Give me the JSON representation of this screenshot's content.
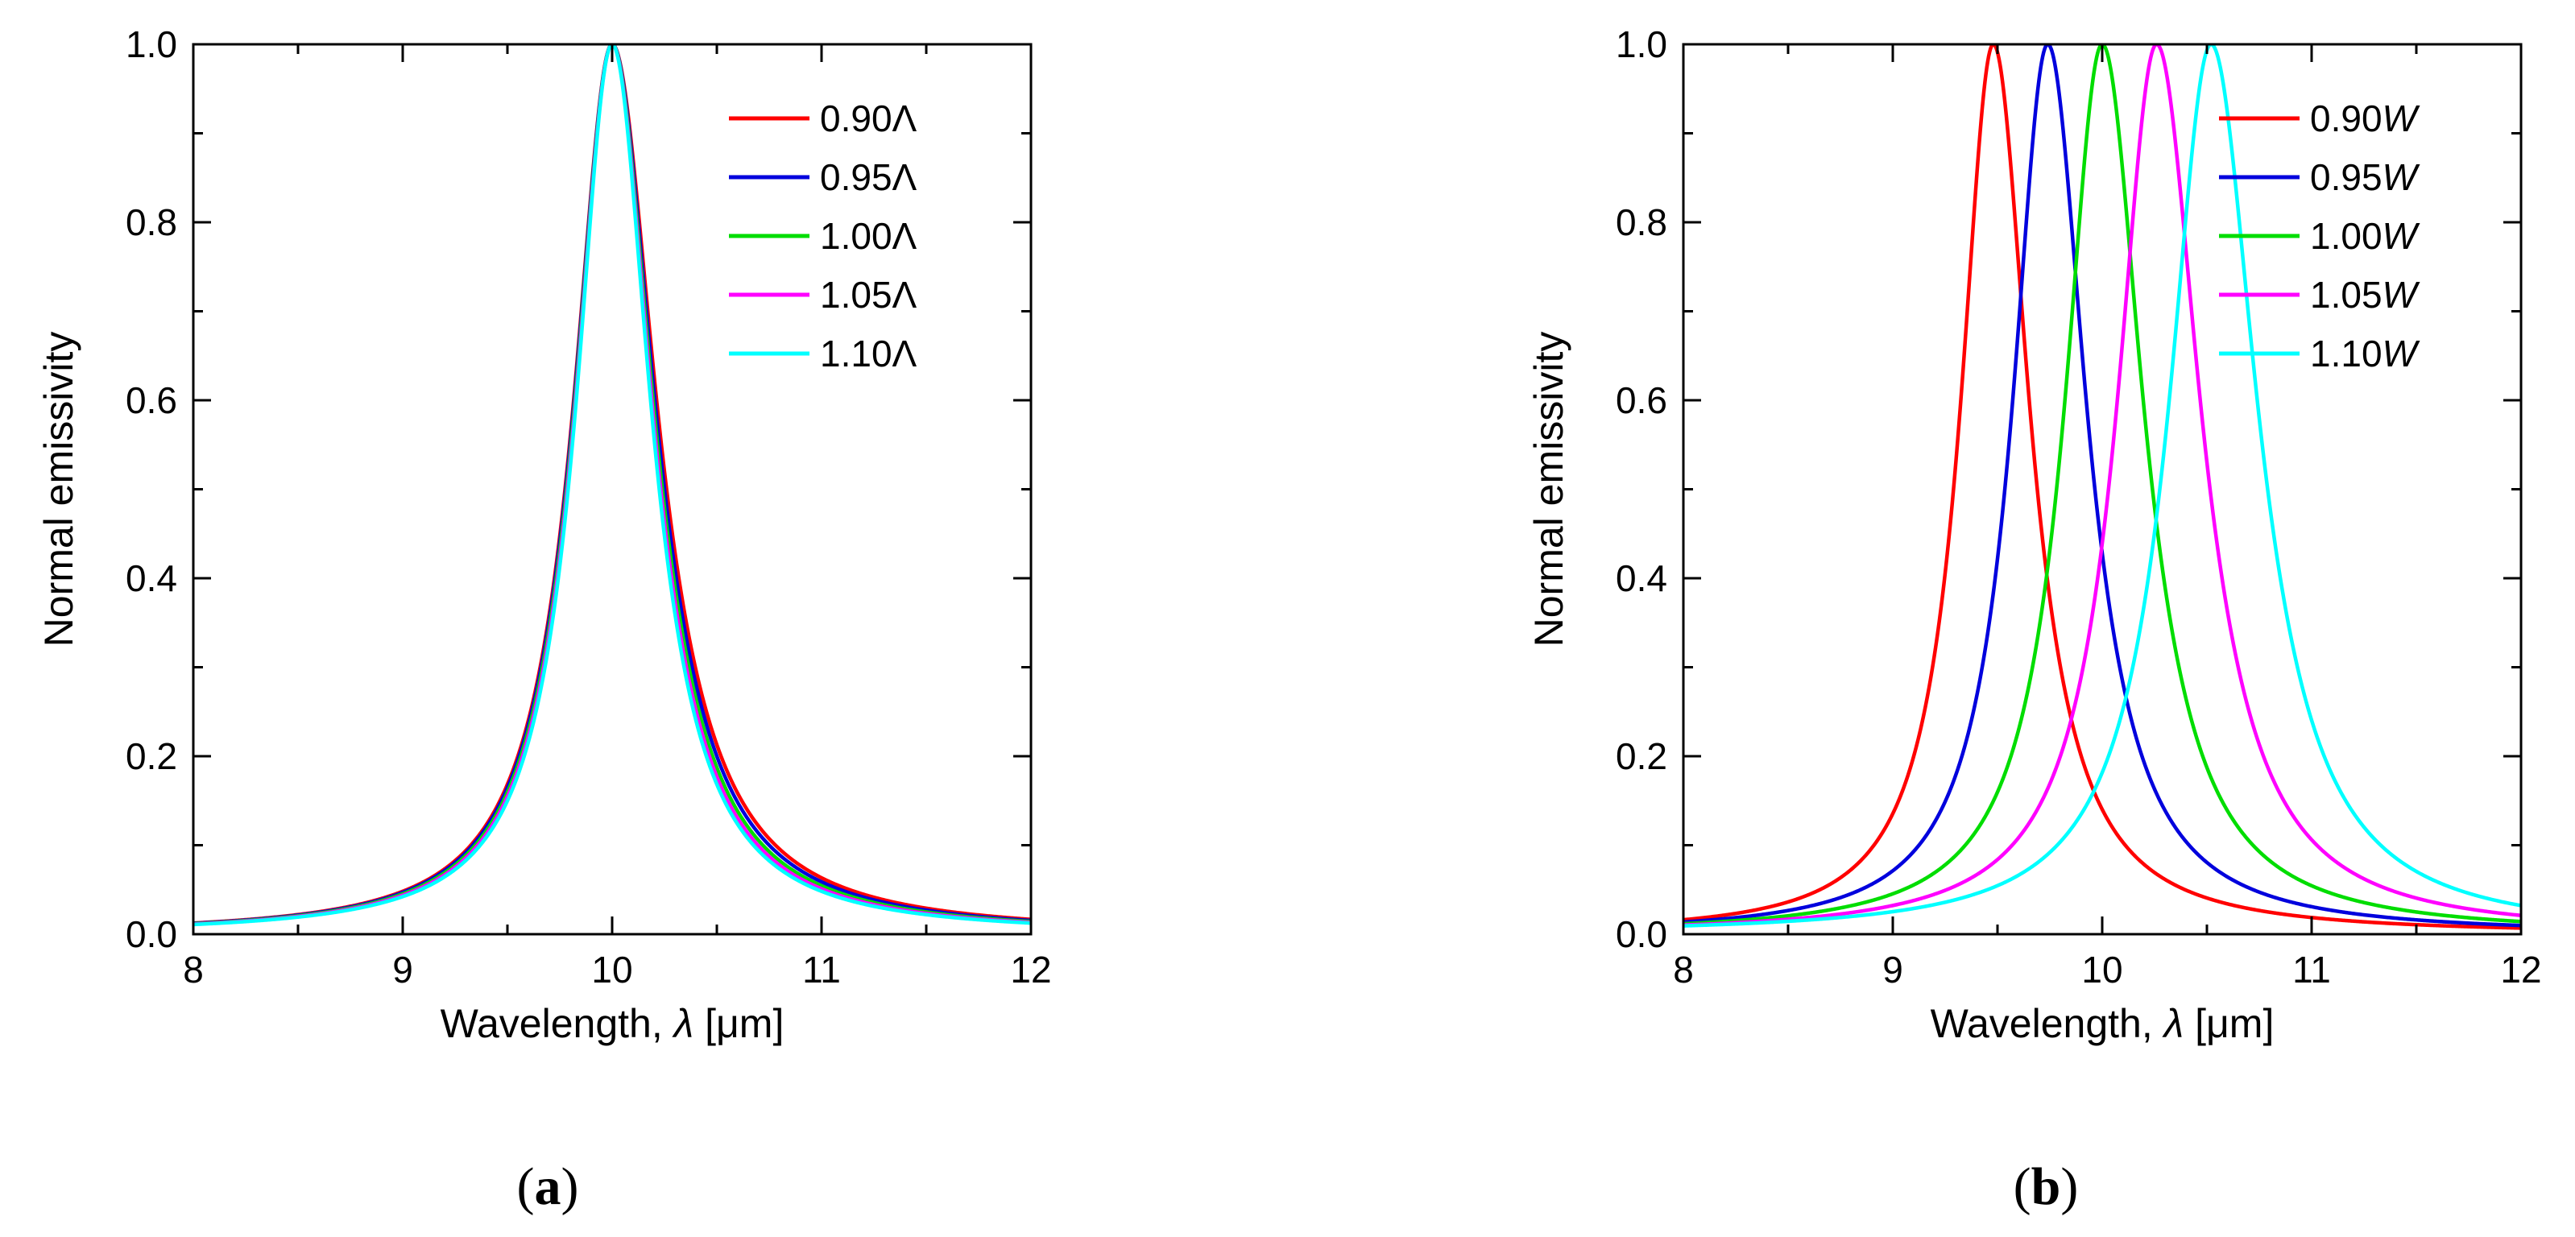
{
  "chart_data": [
    {
      "type": "line",
      "panel_label": "a",
      "xlabel": "Wavelength, ",
      "xlabel_symbol": "λ",
      "xlabel_unit": " [μm]",
      "ylabel": "Normal emissivity",
      "xlim": [
        8,
        12
      ],
      "ylim": [
        0,
        1
      ],
      "x_ticks": [
        "8",
        "9",
        "10",
        "11",
        "12"
      ],
      "y_ticks": [
        "0.0",
        "0.2",
        "0.4",
        "0.6",
        "0.8",
        "1.0"
      ],
      "legend_position": "top-right",
      "series": [
        {
          "name": "0.90",
          "symbol": "Λ",
          "color": "#ff0000",
          "peak": 10.0,
          "hwhm_left": 0.225,
          "hwhm_right": 0.26
        },
        {
          "name": "0.95",
          "symbol": "Λ",
          "color": "#0000dd",
          "peak": 10.0,
          "hwhm_left": 0.222,
          "hwhm_right": 0.25
        },
        {
          "name": "1.00",
          "symbol": "Λ",
          "color": "#00dd00",
          "peak": 10.0,
          "hwhm_left": 0.218,
          "hwhm_right": 0.24
        },
        {
          "name": "1.05",
          "symbol": "Λ",
          "color": "#ff00ff",
          "peak": 10.0,
          "hwhm_left": 0.214,
          "hwhm_right": 0.232
        },
        {
          "name": "1.10",
          "symbol": "Λ",
          "color": "#00ffff",
          "peak": 10.0,
          "hwhm_left": 0.21,
          "hwhm_right": 0.225
        }
      ]
    },
    {
      "type": "line",
      "panel_label": "b",
      "xlabel": "Wavelength, ",
      "xlabel_symbol": "λ",
      "xlabel_unit": " [μm]",
      "ylabel": "Normal emissivity",
      "xlim": [
        8,
        12
      ],
      "ylim": [
        0,
        1
      ],
      "x_ticks": [
        "8",
        "9",
        "10",
        "11",
        "12"
      ],
      "y_ticks": [
        "0.0",
        "0.2",
        "0.4",
        "0.6",
        "0.8",
        "1.0"
      ],
      "legend_position": "top-right",
      "series": [
        {
          "name": "0.90",
          "symbol": "W",
          "color": "#ff0000",
          "peak": 9.48,
          "hwhm_left": 0.19,
          "hwhm_right": 0.21
        },
        {
          "name": "0.95",
          "symbol": "W",
          "color": "#0000dd",
          "peak": 9.74,
          "hwhm_left": 0.205,
          "hwhm_right": 0.225
        },
        {
          "name": "1.00",
          "symbol": "W",
          "color": "#00dd00",
          "peak": 10.0,
          "hwhm_left": 0.218,
          "hwhm_right": 0.24
        },
        {
          "name": "1.05",
          "symbol": "W",
          "color": "#ff00ff",
          "peak": 10.26,
          "hwhm_left": 0.23,
          "hwhm_right": 0.255
        },
        {
          "name": "1.10",
          "symbol": "W",
          "color": "#00ffff",
          "peak": 10.52,
          "hwhm_left": 0.245,
          "hwhm_right": 0.27
        }
      ]
    }
  ]
}
